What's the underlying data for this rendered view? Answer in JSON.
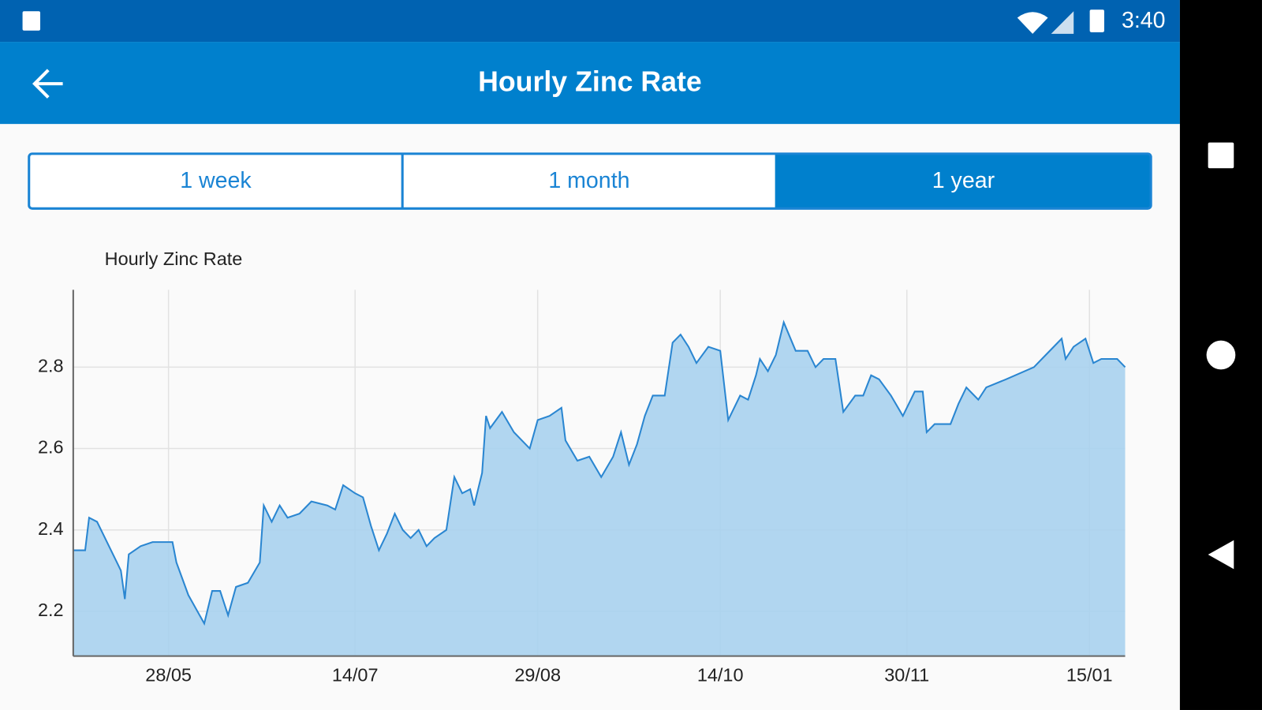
{
  "status_bar": {
    "time": "3:40"
  },
  "app_bar": {
    "title": "Hourly Zinc Rate"
  },
  "tabs": [
    {
      "label": "1 week"
    },
    {
      "label": "1 month"
    },
    {
      "label": "1 year",
      "selected": true
    }
  ],
  "chart_data": {
    "type": "area",
    "title": "Hourly Zinc Rate",
    "color": "#2a86d1",
    "fill": "#a9d2ee",
    "grid": true,
    "x": [
      "04/05",
      "07/05",
      "08/05",
      "10/05",
      "12/05",
      "15/05",
      "16/05",
      "17/05",
      "18/05",
      "21/05",
      "24/05",
      "29/05",
      "30/05",
      "02/06",
      "06/06",
      "08/06",
      "10/06",
      "12/06",
      "14/06",
      "17/06",
      "20/06",
      "21/06",
      "23/06",
      "25/06",
      "27/06",
      "30/06",
      "03/07",
      "07/07",
      "09/07",
      "11/07",
      "14/07",
      "16/07",
      "18/07",
      "20/07",
      "22/07",
      "24/07",
      "26/07",
      "28/07",
      "30/07",
      "01/08",
      "03/08",
      "06/08",
      "08/08",
      "10/08",
      "12/08",
      "13/08",
      "15/08",
      "16/08",
      "17/08",
      "20/08",
      "23/08",
      "27/08",
      "29/08",
      "01/09",
      "04/09",
      "05/09",
      "08/09",
      "11/09",
      "14/09",
      "17/09",
      "19/09",
      "21/09",
      "23/09",
      "25/09",
      "27/09",
      "30/09",
      "02/10",
      "04/10",
      "06/10",
      "08/10",
      "11/10",
      "14/10",
      "16/10",
      "19/10",
      "21/10",
      "23/10",
      "24/10",
      "26/10",
      "28/10",
      "30/10",
      "02/11",
      "05/11",
      "07/11",
      "09/11",
      "12/11",
      "14/11",
      "17/11",
      "19/11",
      "21/11",
      "23/11",
      "26/11",
      "29/11",
      "02/12",
      "04/12",
      "05/12",
      "07/12",
      "11/12",
      "13/12",
      "15/12",
      "18/12",
      "20/12",
      "25/12",
      "01/01",
      "04/01",
      "08/01",
      "09/01",
      "11/01",
      "14/01",
      "16/01",
      "18/01",
      "22/01",
      "24/01"
    ],
    "values": [
      2.35,
      2.35,
      2.43,
      2.42,
      2.38,
      2.32,
      2.3,
      2.23,
      2.34,
      2.36,
      2.37,
      2.37,
      2.32,
      2.24,
      2.17,
      2.25,
      2.25,
      2.19,
      2.26,
      2.27,
      2.32,
      2.46,
      2.42,
      2.46,
      2.43,
      2.44,
      2.47,
      2.46,
      2.45,
      2.51,
      2.49,
      2.48,
      2.41,
      2.35,
      2.39,
      2.44,
      2.4,
      2.38,
      2.4,
      2.36,
      2.38,
      2.4,
      2.53,
      2.49,
      2.5,
      2.46,
      2.54,
      2.68,
      2.65,
      2.69,
      2.64,
      2.6,
      2.67,
      2.68,
      2.7,
      2.62,
      2.57,
      2.58,
      2.53,
      2.58,
      2.64,
      2.56,
      2.61,
      2.68,
      2.73,
      2.73,
      2.86,
      2.88,
      2.85,
      2.81,
      2.85,
      2.84,
      2.67,
      2.73,
      2.72,
      2.78,
      2.82,
      2.79,
      2.83,
      2.91,
      2.84,
      2.84,
      2.8,
      2.82,
      2.82,
      2.69,
      2.73,
      2.73,
      2.78,
      2.77,
      2.73,
      2.68,
      2.74,
      2.74,
      2.64,
      2.66,
      2.66,
      2.71,
      2.75,
      2.72,
      2.75,
      2.77,
      2.8,
      2.83,
      2.87,
      2.82,
      2.85,
      2.87,
      2.81,
      2.82,
      2.82,
      2.8
    ],
    "xlim": [
      "04/05",
      "24/01"
    ],
    "xticks": [
      "28/05",
      "14/07",
      "29/08",
      "14/10",
      "30/11",
      "15/01"
    ],
    "ylim": [
      2.09,
      2.99
    ],
    "yticks": [
      2.2,
      2.4,
      2.6,
      2.8
    ]
  }
}
